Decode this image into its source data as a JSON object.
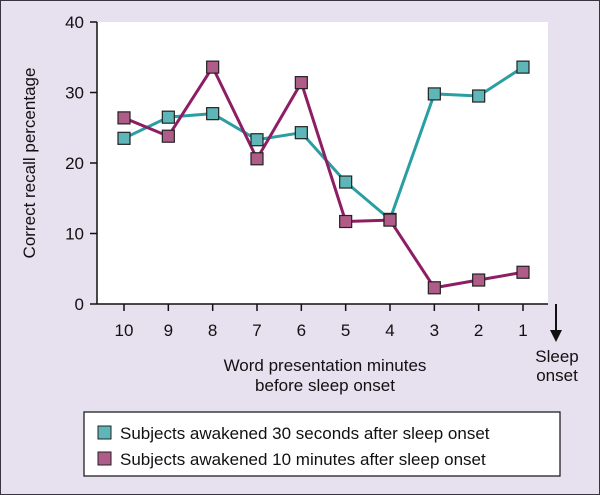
{
  "chart_data": {
    "type": "line",
    "xlabel": [
      "Word presentation minutes",
      "before sleep onset"
    ],
    "ylabel": "Correct recall percentage",
    "categories": [
      "10",
      "9",
      "8",
      "7",
      "6",
      "5",
      "4",
      "3",
      "2",
      "1"
    ],
    "ylim": [
      0,
      40
    ],
    "yticks": [
      0,
      10,
      20,
      30,
      40
    ],
    "annotation": [
      "Sleep",
      "onset"
    ],
    "grid": false,
    "legend_position": "bottom",
    "series": [
      {
        "name": "Subjects awakened 30 seconds after sleep onset",
        "color": "#5fb6b8",
        "line_color": "#2a9ea3",
        "values": [
          23.5,
          26.5,
          27,
          23.3,
          24.3,
          17.3,
          12,
          29.8,
          29.5,
          33.6
        ]
      },
      {
        "name": "Subjects awakened 10 minutes after sleep onset",
        "color": "#b05c88",
        "line_color": "#8e1e63",
        "values": [
          26.4,
          23.8,
          33.6,
          20.6,
          31.4,
          11.7,
          11.9,
          2.3,
          3.4,
          4.5
        ]
      }
    ]
  }
}
